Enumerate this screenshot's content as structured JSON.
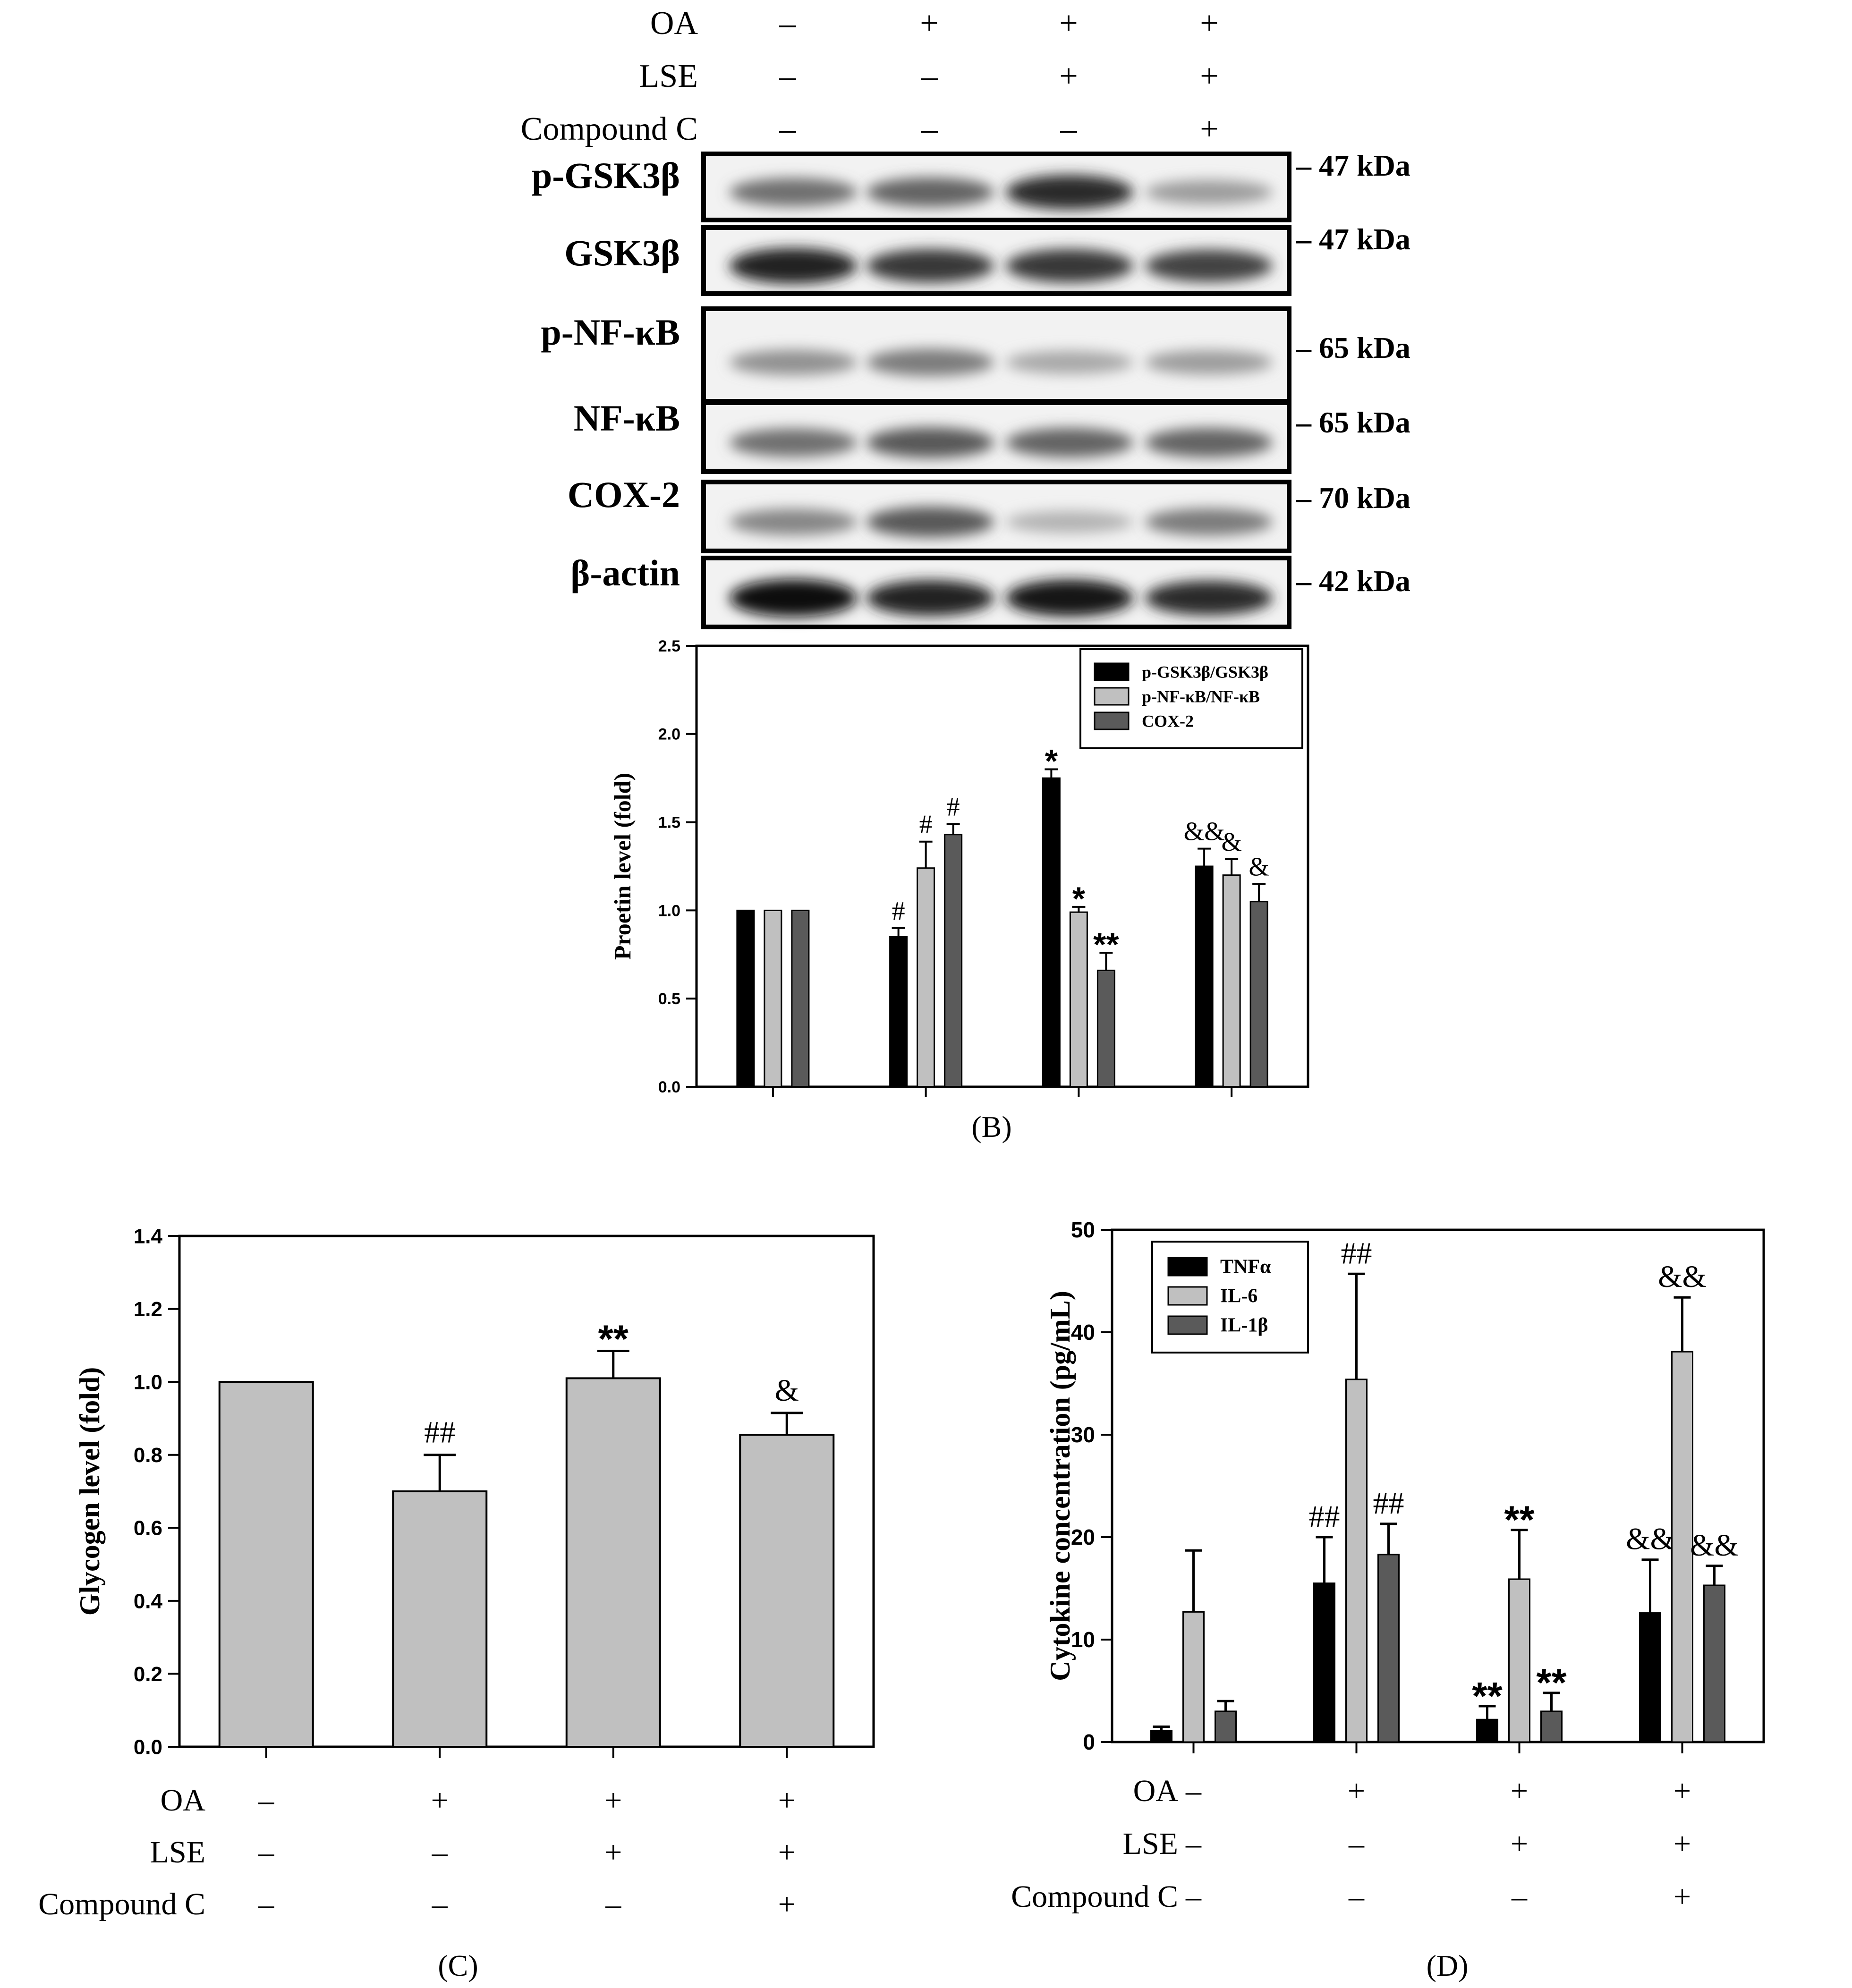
{
  "treatments": {
    "labels": [
      "OA",
      "LSE",
      "Compound C"
    ],
    "rows": [
      [
        "–",
        "+",
        "+",
        "+"
      ],
      [
        "–",
        "–",
        "+",
        "+"
      ],
      [
        "–",
        "–",
        "–",
        "+"
      ]
    ]
  },
  "western_blot": {
    "bands": [
      {
        "label": "p-GSK3β",
        "kda": "– 47 kDa"
      },
      {
        "label": "GSK3β",
        "kda": "– 47 kDa"
      },
      {
        "label": "p-NF-κB",
        "kda": "– 65 kDa"
      },
      {
        "label": "NF-κB",
        "kda": "– 65 kDa"
      },
      {
        "label": "COX-2",
        "kda": "– 70 kDa"
      },
      {
        "label": "β-actin",
        "kda": "– 42 kDa"
      }
    ],
    "intensity": [
      [
        0.55,
        0.6,
        0.85,
        0.35
      ],
      [
        0.9,
        0.8,
        0.8,
        0.75
      ],
      [
        0.4,
        0.5,
        0.3,
        0.35
      ],
      [
        0.55,
        0.65,
        0.6,
        0.6
      ],
      [
        0.45,
        0.65,
        0.25,
        0.5
      ],
      [
        1.0,
        0.9,
        0.95,
        0.85
      ]
    ]
  },
  "chart_data": [
    {
      "panel": "B",
      "type": "bar",
      "caption": "(B)",
      "ylabel": "Proetin level (fold)",
      "ylim": [
        0,
        2.5
      ],
      "yticks": [
        "0.0",
        "0.5",
        "1.0",
        "1.5",
        "2.0",
        "2.5"
      ],
      "ytick_values": [
        0,
        0.5,
        1.0,
        1.5,
        2.0,
        2.5
      ],
      "legend_position": "top-right",
      "groups": 4,
      "series": [
        {
          "name": "p-GSK3β/GSK3β",
          "color": "#000000",
          "values": [
            1.0,
            0.85,
            1.75,
            1.25
          ],
          "errors": [
            0,
            0.05,
            0.05,
            0.1
          ],
          "marks": [
            "",
            "#",
            "*",
            "&&"
          ]
        },
        {
          "name": "p-NF-κB/NF-κB",
          "color": "#c0c0c0",
          "values": [
            1.0,
            1.24,
            0.99,
            1.2
          ],
          "errors": [
            0,
            0.15,
            0.03,
            0.09
          ],
          "marks": [
            "",
            "#",
            "*",
            "&"
          ]
        },
        {
          "name": "COX-2",
          "color": "#5a5a5a",
          "values": [
            1.0,
            1.43,
            0.66,
            1.05
          ],
          "errors": [
            0,
            0.06,
            0.1,
            0.1
          ],
          "marks": [
            "",
            "#",
            "**",
            "&"
          ]
        }
      ]
    },
    {
      "panel": "C",
      "type": "bar",
      "caption": "(C)",
      "ylabel": "Glycogen level (fold)",
      "ylim": [
        0,
        1.4
      ],
      "yticks": [
        "0.0",
        "0.2",
        "0.4",
        "0.6",
        "0.8",
        "1.0",
        "1.2",
        "1.4"
      ],
      "ytick_values": [
        0,
        0.2,
        0.4,
        0.6,
        0.8,
        1.0,
        1.2,
        1.4
      ],
      "groups": 4,
      "series": [
        {
          "color": "#c0c0c0",
          "values": [
            1.0,
            0.7,
            1.01,
            0.855
          ],
          "errors": [
            0,
            0.1,
            0.075,
            0.06
          ],
          "marks": [
            "",
            "##",
            "**",
            "&"
          ]
        }
      ]
    },
    {
      "panel": "D",
      "type": "bar",
      "caption": "(D)",
      "ylabel": "Cytokine concentration (pg/mL)",
      "ylim": [
        0,
        50
      ],
      "yticks": [
        "0",
        "10",
        "20",
        "30",
        "40",
        "50"
      ],
      "ytick_values": [
        0,
        10,
        20,
        30,
        40,
        50
      ],
      "legend_position": "top-left",
      "groups": 4,
      "series": [
        {
          "name": "TNFα",
          "color": "#000000",
          "values": [
            1.1,
            15.5,
            2.2,
            12.6
          ],
          "errors": [
            0.4,
            4.5,
            1.3,
            5.2
          ],
          "marks": [
            "",
            "##",
            "**",
            "&&"
          ]
        },
        {
          "name": "IL-6",
          "color": "#c0c0c0",
          "values": [
            12.7,
            35.4,
            15.9,
            38.1
          ],
          "errors": [
            6.0,
            10.3,
            4.8,
            5.3
          ],
          "marks": [
            "",
            "##",
            "**",
            "&&"
          ]
        },
        {
          "name": "IL-1β",
          "color": "#5a5a5a",
          "values": [
            3.0,
            18.3,
            3.0,
            15.3
          ],
          "errors": [
            1.0,
            3.0,
            1.8,
            1.9
          ],
          "marks": [
            "",
            "##",
            "**",
            "&&"
          ]
        }
      ]
    }
  ]
}
